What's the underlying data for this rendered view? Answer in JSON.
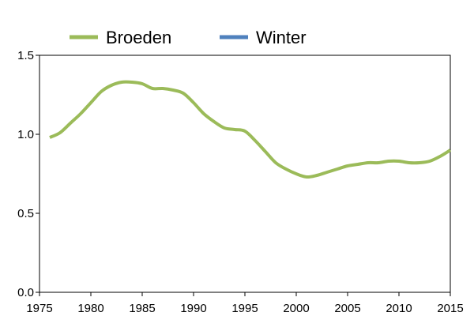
{
  "chart_data": {
    "type": "line",
    "title": "",
    "xlabel": "",
    "ylabel": "",
    "xlim": [
      1975,
      2015
    ],
    "ylim": [
      0,
      1.5
    ],
    "x_ticks": [
      1975,
      1980,
      1985,
      1990,
      1995,
      2000,
      2005,
      2010,
      2015
    ],
    "x_tick_labels": [
      "1975",
      "1980",
      "1985",
      "1990",
      "1995",
      "2000",
      "2005",
      "2010",
      "2015"
    ],
    "y_ticks": [
      0,
      0.5,
      1.0,
      1.5
    ],
    "y_tick_labels": [
      "0.0",
      "0.5",
      "1.0",
      "1.5"
    ],
    "grid": false,
    "legend_position": "top",
    "series": [
      {
        "name": "Broeden",
        "color": "#9BBB59",
        "x": [
          1976,
          1977,
          1978,
          1979,
          1980,
          1981,
          1982,
          1983,
          1984,
          1985,
          1986,
          1987,
          1988,
          1989,
          1990,
          1991,
          1992,
          1993,
          1994,
          1995,
          1996,
          1997,
          1998,
          1999,
          2000,
          2001,
          2002,
          2003,
          2004,
          2005,
          2006,
          2007,
          2008,
          2009,
          2010,
          2011,
          2012,
          2013,
          2014,
          2015
        ],
        "values": [
          0.98,
          1.01,
          1.07,
          1.13,
          1.2,
          1.27,
          1.31,
          1.33,
          1.33,
          1.32,
          1.29,
          1.29,
          1.28,
          1.26,
          1.2,
          1.13,
          1.08,
          1.04,
          1.03,
          1.02,
          0.96,
          0.89,
          0.82,
          0.78,
          0.75,
          0.73,
          0.74,
          0.76,
          0.78,
          0.8,
          0.81,
          0.82,
          0.82,
          0.83,
          0.83,
          0.82,
          0.82,
          0.83,
          0.86,
          0.9
        ]
      },
      {
        "name": "Winter",
        "color": "#4F81BD",
        "x": [],
        "values": []
      }
    ]
  }
}
